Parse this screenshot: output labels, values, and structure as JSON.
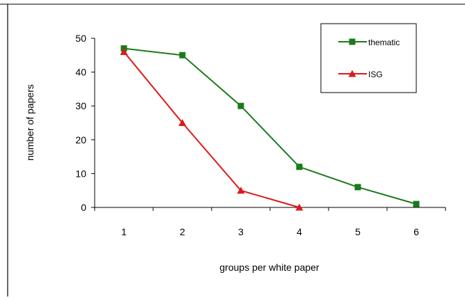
{
  "chart_data": {
    "type": "line",
    "title": "",
    "xlabel": "groups per white paper",
    "ylabel": "number of papers",
    "x": [
      1,
      2,
      3,
      4,
      5,
      6
    ],
    "xticks": [
      "1",
      "2",
      "3",
      "4",
      "5",
      "6"
    ],
    "yticks": [
      "0",
      "10",
      "20",
      "30",
      "40",
      "50"
    ],
    "xlim": [
      0.5,
      6.5
    ],
    "ylim": [
      0,
      50
    ],
    "grid": false,
    "legend_position": "top-right",
    "series": [
      {
        "name": "thematic",
        "color": "#1a7a1a",
        "marker": "square",
        "values": [
          47,
          45,
          30,
          12,
          6,
          1
        ]
      },
      {
        "name": "ISG",
        "color": "#e01818",
        "marker": "triangle",
        "values": [
          46,
          25,
          5,
          0,
          null,
          null
        ]
      }
    ]
  }
}
